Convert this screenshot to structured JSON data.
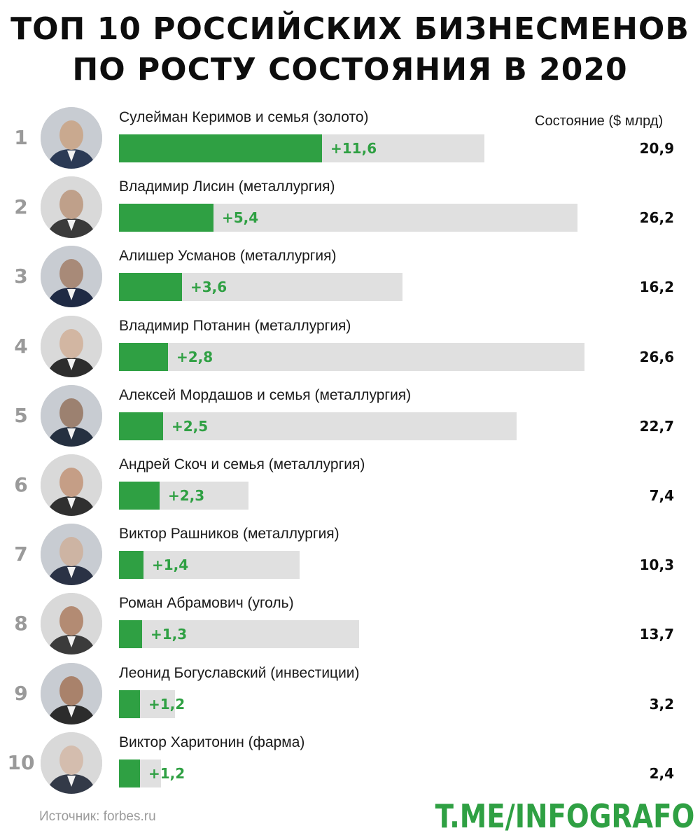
{
  "title_line1": "ТОП 10 РОССИЙСКИХ БИЗНЕСМЕНОВ",
  "title_line2": "ПО РОСТУ СОСТОЯНИЯ В 2020",
  "wealth_header": "Состояние ($ млрд)",
  "source": "Источник: forbes.ru",
  "brand": "T.ME/INFOGRAFO",
  "colors": {
    "growth": "#2fa043",
    "bar_background": "#e0e0e0",
    "rank": "#9a9a9a"
  },
  "chart_data": {
    "type": "bar",
    "orientation": "horizontal",
    "categories": [
      "Сулейман Керимов и семья (золото)",
      "Владимир Лисин (металлургия)",
      "Алишер Усманов (металлургия)",
      "Владимир Потанин (металлургия)",
      "Алексей Мордашов и семья (металлургия)",
      "Андрей Скоч и семья (металлургия)",
      "Виктор Рашников (металлургия)",
      "Роман Абрамович (уголь)",
      "Леонид Богуславский (инвестиции)",
      "Виктор Харитонин (фарма)"
    ],
    "series": [
      {
        "values": [
          11.6,
          5.4,
          3.6,
          2.8,
          2.5,
          2.3,
          1.4,
          1.3,
          1.2,
          1.2
        ]
      },
      {
        "name": "Состояние ($ млрд)",
        "values": [
          20.9,
          26.2,
          16.2,
          26.6,
          22.7,
          7.4,
          10.3,
          13.7,
          3.2,
          2.4
        ]
      }
    ],
    "xlim": [
      0,
      26.6
    ],
    "legend": "none",
    "grid": false
  },
  "rows": [
    {
      "rank": "1",
      "name": "Сулейман Керимов и семья (золото)",
      "growth": "+11,6",
      "wealth": "20,9",
      "growth_value": 11.6,
      "wealth_value": 20.9
    },
    {
      "rank": "2",
      "name": "Владимир Лисин (металлургия)",
      "growth": "+5,4",
      "wealth": "26,2",
      "growth_value": 5.4,
      "wealth_value": 26.2
    },
    {
      "rank": "3",
      "name": "Алишер Усманов (металлургия)",
      "growth": "+3,6",
      "wealth": "16,2",
      "growth_value": 3.6,
      "wealth_value": 16.2
    },
    {
      "rank": "4",
      "name": "Владимир Потанин (металлургия)",
      "growth": "+2,8",
      "wealth": "26,6",
      "growth_value": 2.8,
      "wealth_value": 26.6
    },
    {
      "rank": "5",
      "name": "Алексей Мордашов и семья (металлургия)",
      "growth": "+2,5",
      "wealth": "22,7",
      "growth_value": 2.5,
      "wealth_value": 22.7
    },
    {
      "rank": "6",
      "name": "Андрей Скоч и семья (металлургия)",
      "growth": "+2,3",
      "wealth": "7,4",
      "growth_value": 2.3,
      "wealth_value": 7.4
    },
    {
      "rank": "7",
      "name": "Виктор Рашников (металлургия)",
      "growth": "+1,4",
      "wealth": "10,3",
      "growth_value": 1.4,
      "wealth_value": 10.3
    },
    {
      "rank": "8",
      "name": "Роман Абрамович (уголь)",
      "growth": "+1,3",
      "wealth": "13,7",
      "growth_value": 1.3,
      "wealth_value": 13.7
    },
    {
      "rank": "9",
      "name": "Леонид Богуславский (инвестиции)",
      "growth": "+1,2",
      "wealth": "3,2",
      "growth_value": 1.2,
      "wealth_value": 3.2
    },
    {
      "rank": "10",
      "name": "Виктор Харитонин (фарма)",
      "growth": "+1,2",
      "wealth": "2,4",
      "growth_value": 1.2,
      "wealth_value": 2.4
    }
  ]
}
